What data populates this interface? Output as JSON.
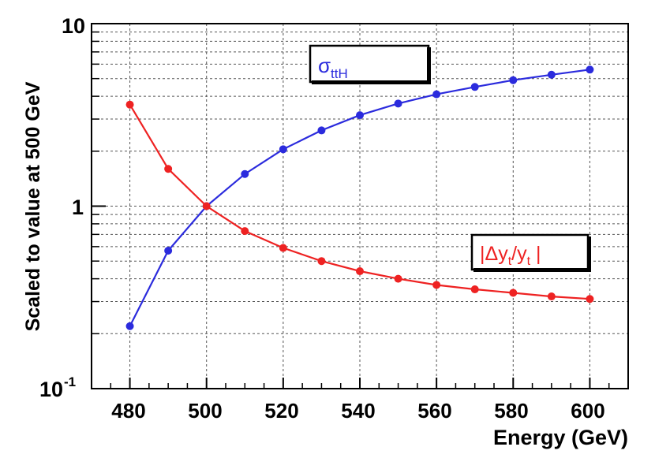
{
  "chart_data": {
    "type": "line",
    "title": "",
    "xlabel": "Energy (GeV)",
    "ylabel": "Scaled to value at 500 GeV",
    "x": [
      480,
      490,
      500,
      510,
      520,
      530,
      540,
      550,
      560,
      570,
      580,
      590,
      600
    ],
    "xlim": [
      470,
      610
    ],
    "ylim": [
      0.1,
      10
    ],
    "yscale": "log",
    "grid": true,
    "x_ticks": [
      "480",
      "500",
      "520",
      "540",
      "560",
      "580",
      "600"
    ],
    "x_tick_values": [
      480,
      500,
      520,
      540,
      560,
      580,
      600
    ],
    "y_ticks": {
      "top": "10",
      "middle": "1",
      "bottom_base": "10",
      "bottom_exp": "-1"
    },
    "series": [
      {
        "name": "sigma_ttH",
        "color": "#2b2bdd",
        "label": {
          "main": "σ",
          "sub": "ttH"
        },
        "values": [
          0.22,
          0.57,
          1.0,
          1.5,
          2.05,
          2.6,
          3.15,
          3.65,
          4.1,
          4.5,
          4.9,
          5.25,
          5.6
        ]
      },
      {
        "name": "delta_yt_over_yt",
        "color": "#ee2222",
        "label": {
          "p1": "|Δy",
          "s1": "t",
          "p2": "/y",
          "s2": "t",
          "p3": " |"
        },
        "values": [
          3.6,
          1.6,
          1.0,
          0.73,
          0.59,
          0.5,
          0.44,
          0.4,
          0.37,
          0.35,
          0.335,
          0.32,
          0.31
        ]
      }
    ]
  }
}
